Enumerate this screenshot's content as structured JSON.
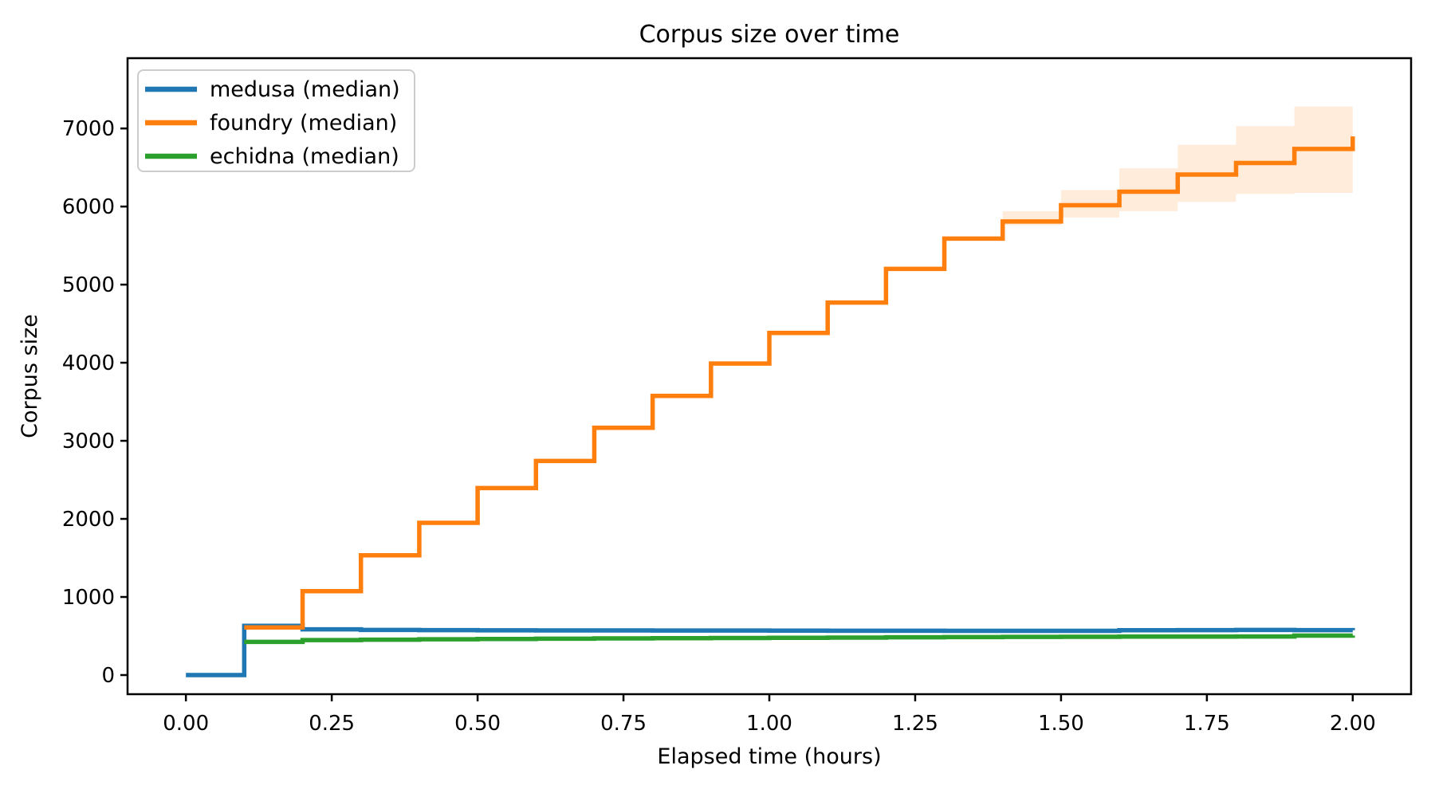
{
  "chart_data": {
    "type": "line",
    "subtype": "step-post",
    "title": "Corpus size over time",
    "xlabel": "Elapsed time (hours)",
    "ylabel": "Corpus size",
    "xlim": [
      -0.1,
      2.1
    ],
    "ylim": [
      -245,
      7900
    ],
    "grid": false,
    "legend_position": "upper left",
    "x_ticks": [
      0.0,
      0.25,
      0.5,
      0.75,
      1.0,
      1.25,
      1.5,
      1.75,
      2.0
    ],
    "x_tick_labels": [
      "0.00",
      "0.25",
      "0.50",
      "0.75",
      "1.00",
      "1.25",
      "1.50",
      "1.75",
      "2.00"
    ],
    "y_ticks": [
      0,
      1000,
      2000,
      3000,
      4000,
      5000,
      6000,
      7000
    ],
    "y_tick_labels": [
      "0",
      "1000",
      "2000",
      "3000",
      "4000",
      "5000",
      "6000",
      "7000"
    ],
    "series": [
      {
        "name": "medusa (median)",
        "color": "#1f77b4",
        "x": [
          0.0,
          0.1,
          0.2,
          0.3,
          0.4,
          0.5,
          0.6,
          0.7,
          0.8,
          0.9,
          1.0,
          1.1,
          1.2,
          1.3,
          1.4,
          1.5,
          1.6,
          1.7,
          1.8,
          1.9,
          2.0
        ],
        "y": [
          0,
          630,
          585,
          578,
          575,
          573,
          572,
          571,
          570,
          570,
          569,
          568,
          568,
          567,
          567,
          567,
          574,
          576,
          578,
          576,
          574
        ]
      },
      {
        "name": "foundry (median)",
        "color": "#ff7f0e",
        "x": [
          0.1,
          0.2,
          0.3,
          0.4,
          0.5,
          0.6,
          0.7,
          0.8,
          0.9,
          1.0,
          1.1,
          1.2,
          1.3,
          1.4,
          1.5,
          1.6,
          1.7,
          1.8,
          1.9,
          2.0
        ],
        "y": [
          610,
          1074,
          1534,
          1950,
          2395,
          2742,
          3166,
          3575,
          3990,
          4381,
          4770,
          5201,
          5589,
          5809,
          6017,
          6190,
          6410,
          6558,
          6738,
          6898
        ]
      },
      {
        "name": "echidna (median)",
        "color": "#2ca02c",
        "x": [
          0.1,
          0.2,
          0.3,
          0.4,
          0.5,
          0.6,
          0.7,
          0.8,
          0.9,
          1.0,
          1.1,
          1.2,
          1.3,
          1.4,
          1.5,
          1.6,
          1.7,
          1.8,
          1.9,
          2.0
        ],
        "y": [
          425,
          448,
          453,
          458,
          462,
          466,
          469,
          472,
          475,
          477,
          480,
          483,
          486,
          488,
          490,
          492,
          493,
          494,
          505,
          507
        ]
      }
    ],
    "band": {
      "series": "foundry (median)",
      "color": "#ff7f0e",
      "opacity": 0.15,
      "x": [
        1.4,
        1.5,
        1.6,
        1.7,
        1.8,
        1.9
      ],
      "x_end": 2.0,
      "hi": [
        5940,
        6210,
        6490,
        6790,
        7030,
        7280
      ],
      "lo": [
        5760,
        5860,
        5940,
        6060,
        6160,
        6175
      ]
    }
  }
}
